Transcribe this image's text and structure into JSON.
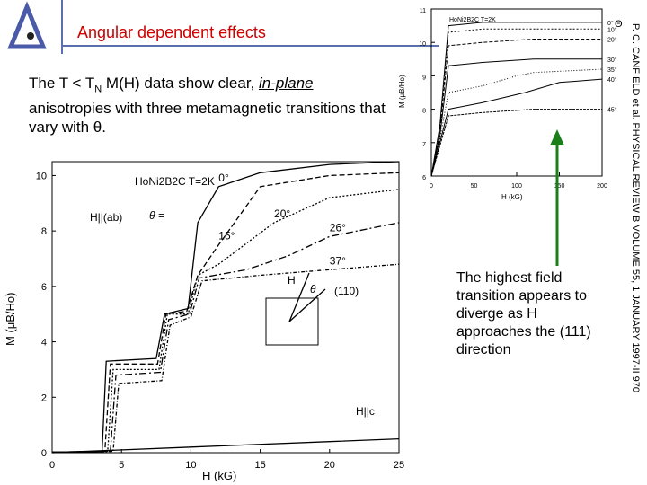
{
  "slide": {
    "title": "Angular dependent effects",
    "body_parts": {
      "intro": "The T < T",
      "sub": "N",
      "mid": " M(H) data show clear, ",
      "emph": "in-plane",
      "rest": " anisotropies with three metamagnetic transitions that vary with θ."
    },
    "callout": "The highest field transition appears to diverge as H approaches the (111) direction",
    "journal_ref": "P. C. CANFIELD et al.   PHYSICAL REVIEW B VOLUME 55, 1 JANUARY 1997-II   970",
    "colors": {
      "title": "#cc0000",
      "arrow": "#1a7f1a",
      "rule": "#5a6fb0"
    }
  },
  "chart_data": [
    {
      "type": "line",
      "title": "HoNi2B2C   T=2K",
      "xlabel": "H (kG)",
      "ylabel": "M (μB/Ho)",
      "xlim": [
        0,
        25
      ],
      "ylim": [
        0,
        10.5
      ],
      "xticks": [
        0,
        5,
        10,
        15,
        20,
        25
      ],
      "yticks": [
        0,
        2,
        4,
        6,
        8,
        10
      ],
      "grid": false,
      "annotations": {
        "orientation": "H||(ab)",
        "theta_eq": "θ =",
        "hc_label": "H||c",
        "inset_h": "H",
        "inset_theta": "θ",
        "inset_dir": "(110)"
      },
      "series": [
        {
          "name": "0°",
          "x": [
            0,
            3.6,
            3.9,
            7.5,
            8.1,
            9.8,
            10.5,
            12,
            15,
            20,
            25
          ],
          "y": [
            0.02,
            0.05,
            3.3,
            3.4,
            5.0,
            5.2,
            8.3,
            9.6,
            10.1,
            10.4,
            10.5
          ]
        },
        {
          "name": "15°",
          "x": [
            0,
            3.8,
            4.2,
            7.6,
            8.2,
            9.7,
            10.5,
            12,
            15,
            20,
            25
          ],
          "y": [
            0.02,
            0.05,
            3.2,
            3.2,
            5.0,
            5.1,
            6.4,
            7.5,
            9.6,
            10.0,
            10.1
          ]
        },
        {
          "name": "20°",
          "x": [
            0,
            4.0,
            4.4,
            7.7,
            8.3,
            9.8,
            10.5,
            12,
            16,
            20,
            25
          ],
          "y": [
            0.02,
            0.05,
            3.0,
            3.0,
            5.0,
            5.0,
            6.4,
            6.8,
            8.3,
            9.2,
            9.5
          ]
        },
        {
          "name": "26°",
          "x": [
            0,
            4.2,
            4.6,
            7.8,
            8.4,
            9.9,
            10.6,
            14,
            17,
            20,
            25
          ],
          "y": [
            0.02,
            0.05,
            2.8,
            2.9,
            4.8,
            5.0,
            6.3,
            6.6,
            7.1,
            7.8,
            8.3
          ]
        },
        {
          "name": "37°",
          "x": [
            0,
            4.4,
            4.8,
            7.9,
            8.5,
            10.0,
            10.8,
            15,
            20,
            25
          ],
          "y": [
            0.02,
            0.05,
            2.5,
            2.6,
            4.6,
            4.9,
            6.2,
            6.4,
            6.6,
            6.8
          ]
        },
        {
          "name": "H||c",
          "x": [
            0,
            10,
            20,
            25
          ],
          "y": [
            0.0,
            0.2,
            0.4,
            0.5
          ]
        }
      ]
    },
    {
      "type": "line",
      "title": "HoNi2B2C   T=2K",
      "xlabel": "H (kG)",
      "ylabel": "M (μB/Ho)",
      "xlim": [
        0,
        200
      ],
      "ylim": [
        6,
        11
      ],
      "xticks": [
        0,
        50,
        100,
        150,
        200
      ],
      "yticks": [
        6,
        7,
        8,
        9,
        10,
        11
      ],
      "legend_symbol": "Θ",
      "series": [
        {
          "name": "0°",
          "x": [
            0,
            10,
            20,
            60,
            120,
            200
          ],
          "y": [
            6.0,
            7.5,
            10.5,
            10.6,
            10.6,
            10.6
          ]
        },
        {
          "name": "10°",
          "x": [
            0,
            10,
            20,
            60,
            120,
            200
          ],
          "y": [
            6.0,
            7.4,
            10.3,
            10.4,
            10.4,
            10.4
          ]
        },
        {
          "name": "20°",
          "x": [
            0,
            10,
            20,
            60,
            120,
            200
          ],
          "y": [
            6.0,
            7.3,
            9.9,
            10.0,
            10.1,
            10.1
          ]
        },
        {
          "name": "30°",
          "x": [
            0,
            10,
            20,
            60,
            120,
            200
          ],
          "y": [
            6.0,
            7.2,
            9.3,
            9.4,
            9.5,
            9.5
          ]
        },
        {
          "name": "35°",
          "x": [
            0,
            10,
            20,
            60,
            100,
            120,
            200
          ],
          "y": [
            6.0,
            7.1,
            8.5,
            8.7,
            9.0,
            9.1,
            9.2
          ]
        },
        {
          "name": "40°",
          "x": [
            0,
            10,
            20,
            60,
            110,
            150,
            200
          ],
          "y": [
            6.0,
            7.0,
            8.0,
            8.2,
            8.5,
            8.8,
            8.9
          ]
        },
        {
          "name": "45°",
          "x": [
            0,
            10,
            20,
            60,
            120,
            200
          ],
          "y": [
            6.0,
            6.9,
            7.8,
            7.9,
            8.0,
            8.0
          ]
        }
      ]
    }
  ]
}
